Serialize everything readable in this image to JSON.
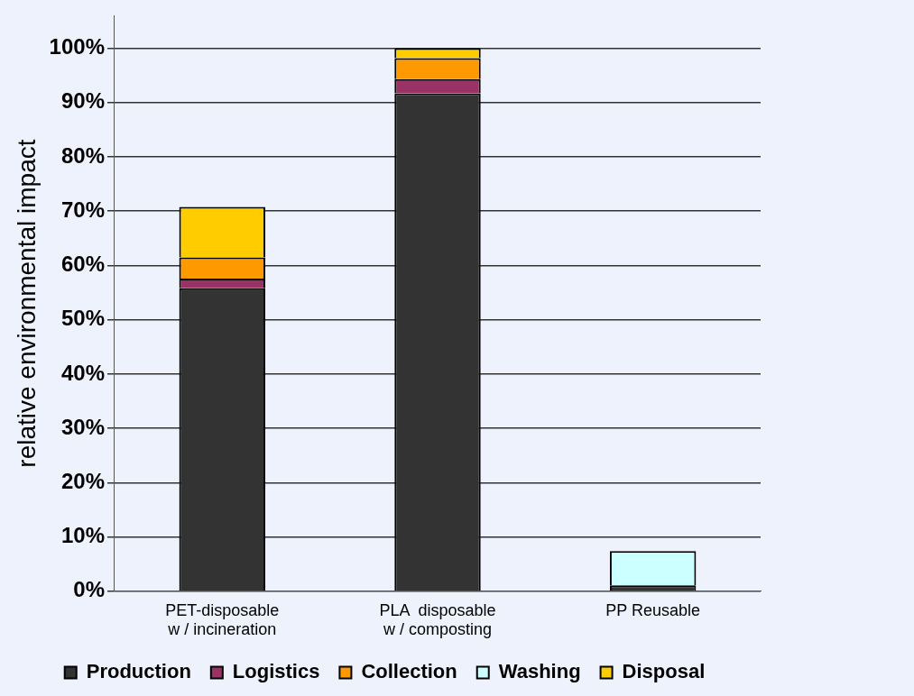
{
  "chart_data": {
    "type": "bar",
    "stacked": true,
    "ylabel": "relative environmental impact",
    "categories": [
      "PET-disposable\nw / incineration",
      "PLA  disposable\nw / composting",
      "PP Reusable"
    ],
    "series": [
      {
        "name": "Production",
        "color": "#333333",
        "values": [
          55.8,
          91.7,
          1.1
        ]
      },
      {
        "name": "Logistics",
        "color": "#993366",
        "values": [
          1.8,
          2.6,
          0
        ]
      },
      {
        "name": "Collection",
        "color": "#ff9900",
        "values": [
          3.9,
          3.9,
          0
        ]
      },
      {
        "name": "Washing",
        "color": "#ccffff",
        "values": [
          0,
          0,
          6.3
        ]
      },
      {
        "name": "Disposal",
        "color": "#ffcc00",
        "values": [
          9.3,
          1.8,
          0
        ]
      }
    ],
    "ylim": [
      0,
      106
    ],
    "yticks": [
      {
        "value": 0,
        "label": "0%"
      },
      {
        "value": 10,
        "label": "10%"
      },
      {
        "value": 20,
        "label": "20%"
      },
      {
        "value": 30,
        "label": "30%"
      },
      {
        "value": 40,
        "label": "40%"
      },
      {
        "value": 50,
        "label": "50%"
      },
      {
        "value": 60,
        "label": "60%"
      },
      {
        "value": 70,
        "label": "70%"
      },
      {
        "value": 80,
        "label": "80%"
      },
      {
        "value": 90,
        "label": "90%"
      },
      {
        "value": 100,
        "label": "100%"
      }
    ],
    "grid": "y",
    "legend": "bottom"
  }
}
